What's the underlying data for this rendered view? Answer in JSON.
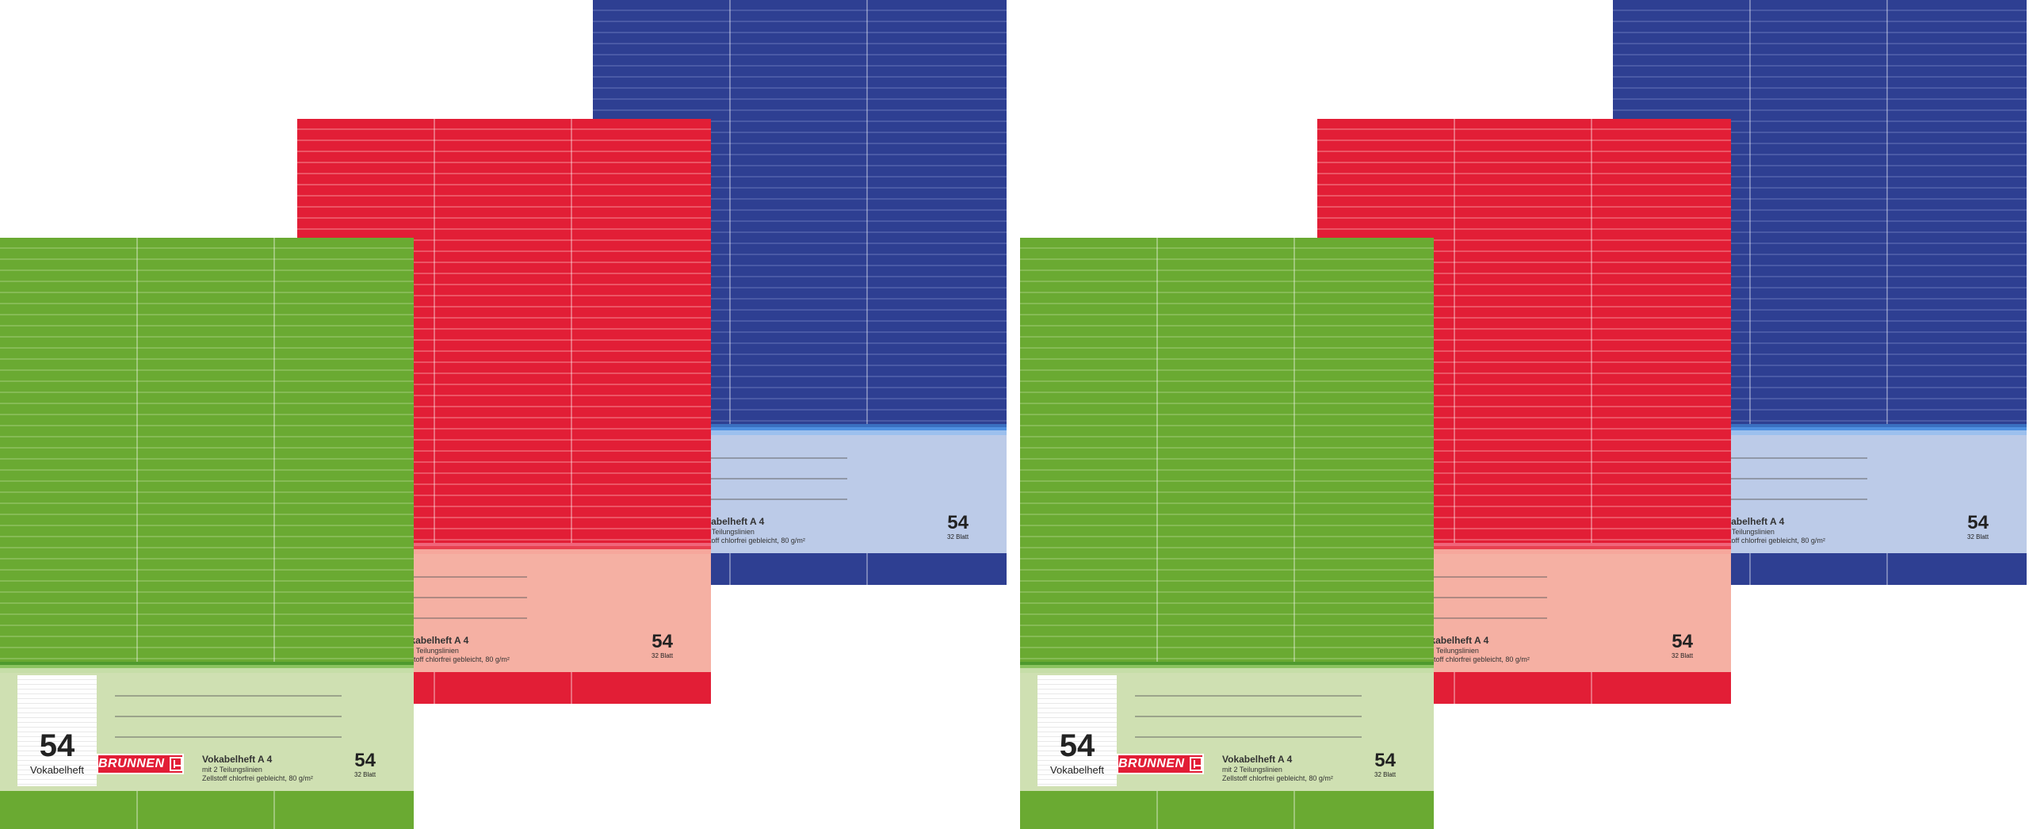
{
  "brand": {
    "name": "BRUNNEN"
  },
  "colors": {
    "blue": "#2e3f92",
    "red": "#e21e36",
    "green": "#6aaa32"
  },
  "notebook": {
    "title": "Vokabelheft A 4",
    "feature": "mit 2 Teilungslinien",
    "paper": "Zellstoff chlorfrei gebleicht, 80 g/m²",
    "number": "54",
    "sheets": "32 Blatt",
    "tag_number": "54",
    "tag_text": "Vokabelheft"
  }
}
